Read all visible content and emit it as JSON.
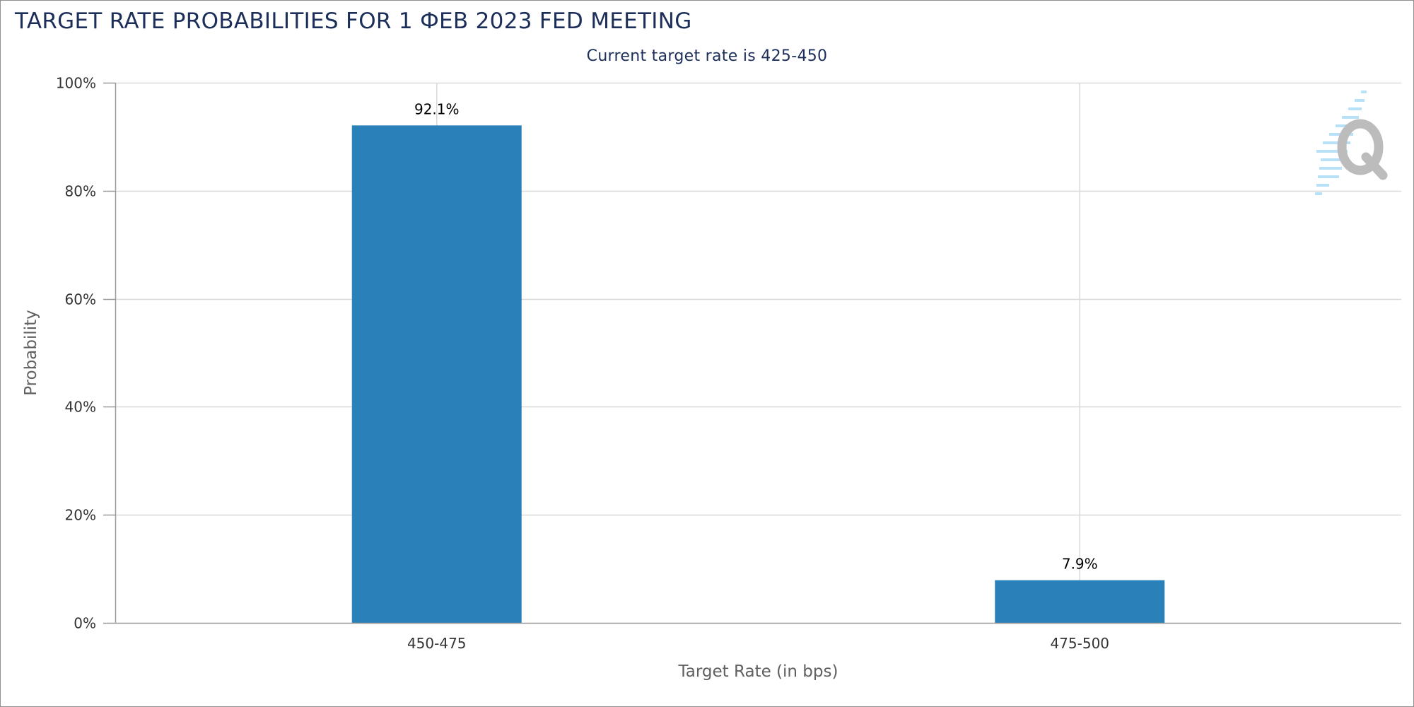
{
  "chart_data": {
    "type": "bar",
    "title": "TARGET RATE PROBABILITIES FOR 1 ФЕВ 2023 FED MEETING",
    "subtitle": "Current target rate is 425-450",
    "xlabel": "Target Rate (in bps)",
    "ylabel": "Probability",
    "categories": [
      "450-475",
      "475-500"
    ],
    "values": [
      92.1,
      7.9
    ],
    "data_labels": [
      "92.1%",
      "7.9%"
    ],
    "ylim": [
      0,
      100
    ],
    "y_ticks": [
      0,
      20,
      40,
      60,
      80,
      100
    ],
    "y_tick_labels": [
      "0%",
      "20%",
      "40%",
      "60%",
      "80%",
      "100%"
    ],
    "grid": true,
    "legend": "none",
    "colors": {
      "bar": "#2a80b9",
      "title": "#1c2e5a",
      "grid": "#d9d9d9",
      "axis": "#999999",
      "frame": "#8f8f8f"
    },
    "watermark_icon": "quikstrike-q-logo"
  }
}
